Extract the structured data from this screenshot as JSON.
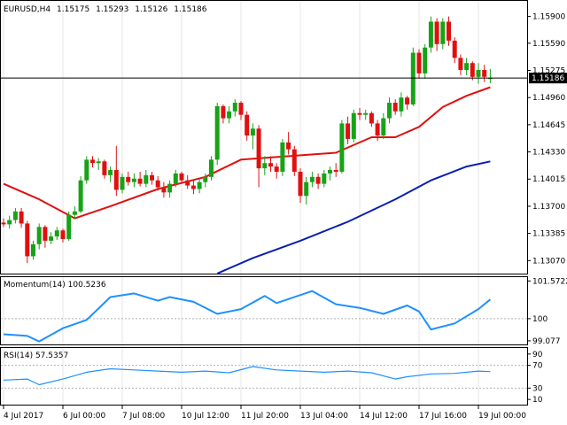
{
  "header": {
    "symbol": "EURUSD,H4",
    "open": "1.15175",
    "high": "1.15293",
    "low": "1.15126",
    "close": "1.15186"
  },
  "colors": {
    "bull": "#17a317",
    "bear": "#e01010",
    "ma_fast": "#e01010",
    "ma_slow": "#0a1fb0",
    "indicator": "#1e90ff",
    "grid": "#e6e6e6",
    "price_tag_bg": "#000000",
    "price_tag_text": "#ffffff"
  },
  "chart_data": [
    {
      "type": "candlestick",
      "panel": "price",
      "title": "EURUSD,H4",
      "ylim": [
        1.1295,
        1.1605
      ],
      "y_ticks": [
        "1.15900",
        "1.15590",
        "1.15275",
        "1.14960",
        "1.14645",
        "1.14330",
        "1.14015",
        "1.13700",
        "1.13385",
        "1.13070"
      ],
      "current_price": "1.15186",
      "x_labels": [
        "4 Jul 2017",
        "6 Jul 00:00",
        "7 Jul 08:00",
        "10 Jul 12:00",
        "11 Jul 20:00",
        "13 Jul 04:00",
        "14 Jul 12:00",
        "17 Jul 16:00",
        "19 Jul 00:00"
      ],
      "x_label_index": [
        0,
        10,
        20,
        30,
        40,
        50,
        60,
        70,
        80
      ],
      "candles": [
        [
          1.1351,
          1.1356,
          1.1346,
          1.1349
        ],
        [
          1.1349,
          1.1359,
          1.1344,
          1.1354
        ],
        [
          1.1354,
          1.1368,
          1.135,
          1.1364
        ],
        [
          1.1364,
          1.1368,
          1.1345,
          1.135
        ],
        [
          1.135,
          1.1353,
          1.1304,
          1.1312
        ],
        [
          1.1312,
          1.133,
          1.1308,
          1.1326
        ],
        [
          1.1326,
          1.135,
          1.132,
          1.1346
        ],
        [
          1.1346,
          1.1348,
          1.1322,
          1.133
        ],
        [
          1.133,
          1.134,
          1.1326,
          1.1335
        ],
        [
          1.1335,
          1.1346,
          1.1331,
          1.1342
        ],
        [
          1.1342,
          1.1344,
          1.1328,
          1.1332
        ],
        [
          1.1332,
          1.1364,
          1.133,
          1.136
        ],
        [
          1.136,
          1.137,
          1.1355,
          1.1364
        ],
        [
          1.1364,
          1.1405,
          1.1362,
          1.14
        ],
        [
          1.14,
          1.1428,
          1.1396,
          1.1424
        ],
        [
          1.1424,
          1.1428,
          1.1415,
          1.142
        ],
        [
          1.142,
          1.1426,
          1.1412,
          1.1422
        ],
        [
          1.1422,
          1.1424,
          1.1402,
          1.1406
        ],
        [
          1.1406,
          1.1416,
          1.1398,
          1.1412
        ],
        [
          1.1412,
          1.144,
          1.1382,
          1.1389
        ],
        [
          1.1389,
          1.1408,
          1.1385,
          1.1404
        ],
        [
          1.1404,
          1.141,
          1.1394,
          1.1398
        ],
        [
          1.1398,
          1.1408,
          1.1392,
          1.1402
        ],
        [
          1.1402,
          1.141,
          1.1393,
          1.1396
        ],
        [
          1.1396,
          1.1412,
          1.1392,
          1.1406
        ],
        [
          1.1406,
          1.141,
          1.1395,
          1.14
        ],
        [
          1.14,
          1.1405,
          1.1388,
          1.1392
        ],
        [
          1.1392,
          1.1398,
          1.138,
          1.1386
        ],
        [
          1.1386,
          1.14,
          1.138,
          1.1396
        ],
        [
          1.1396,
          1.1412,
          1.1392,
          1.1408
        ],
        [
          1.1408,
          1.141,
          1.1396,
          1.14
        ],
        [
          1.14,
          1.1406,
          1.139,
          1.1394
        ],
        [
          1.1394,
          1.14,
          1.1384,
          1.139
        ],
        [
          1.139,
          1.1402,
          1.1385,
          1.1398
        ],
        [
          1.1398,
          1.1408,
          1.1392,
          1.1404
        ],
        [
          1.1404,
          1.1428,
          1.14,
          1.1424
        ],
        [
          1.1424,
          1.149,
          1.1418,
          1.1486
        ],
        [
          1.1486,
          1.1488,
          1.1466,
          1.1472
        ],
        [
          1.1472,
          1.1486,
          1.1466,
          1.148
        ],
        [
          1.148,
          1.1494,
          1.1474,
          1.149
        ],
        [
          1.149,
          1.1492,
          1.147,
          1.1476
        ],
        [
          1.1476,
          1.148,
          1.1446,
          1.1452
        ],
        [
          1.1452,
          1.1466,
          1.1436,
          1.146
        ],
        [
          1.146,
          1.1464,
          1.1392,
          1.1414
        ],
        [
          1.1414,
          1.1428,
          1.1406,
          1.142
        ],
        [
          1.142,
          1.1428,
          1.141,
          1.1416
        ],
        [
          1.1416,
          1.142,
          1.1402,
          1.141
        ],
        [
          1.141,
          1.1448,
          1.1405,
          1.1444
        ],
        [
          1.1444,
          1.1456,
          1.143,
          1.1436
        ],
        [
          1.1436,
          1.144,
          1.1405,
          1.141
        ],
        [
          1.141,
          1.1414,
          1.1374,
          1.1382
        ],
        [
          1.1382,
          1.1404,
          1.1372,
          1.1398
        ],
        [
          1.1398,
          1.141,
          1.1392,
          1.1404
        ],
        [
          1.1404,
          1.1408,
          1.139,
          1.1396
        ],
        [
          1.1396,
          1.1412,
          1.1392,
          1.1408
        ],
        [
          1.1408,
          1.1416,
          1.14,
          1.1412
        ],
        [
          1.1412,
          1.142,
          1.1404,
          1.141
        ],
        [
          1.141,
          1.147,
          1.1408,
          1.1466
        ],
        [
          1.1466,
          1.1474,
          1.1442,
          1.1448
        ],
        [
          1.1448,
          1.1482,
          1.1444,
          1.1478
        ],
        [
          1.1478,
          1.1484,
          1.147,
          1.1476
        ],
        [
          1.1476,
          1.1482,
          1.147,
          1.1478
        ],
        [
          1.1478,
          1.148,
          1.1462,
          1.1466
        ],
        [
          1.1466,
          1.147,
          1.1446,
          1.1452
        ],
        [
          1.1452,
          1.1478,
          1.1448,
          1.1472
        ],
        [
          1.1472,
          1.1496,
          1.1466,
          1.149
        ],
        [
          1.149,
          1.1494,
          1.1476,
          1.148
        ],
        [
          1.148,
          1.1502,
          1.1474,
          1.1496
        ],
        [
          1.1496,
          1.1498,
          1.1482,
          1.1488
        ],
        [
          1.1488,
          1.1554,
          1.1486,
          1.1548
        ],
        [
          1.1548,
          1.1552,
          1.1518,
          1.1524
        ],
        [
          1.1524,
          1.1558,
          1.1518,
          1.1554
        ],
        [
          1.1554,
          1.159,
          1.1548,
          1.1584
        ],
        [
          1.1584,
          1.1588,
          1.155,
          1.1558
        ],
        [
          1.1558,
          1.1588,
          1.1552,
          1.1584
        ],
        [
          1.1584,
          1.159,
          1.1556,
          1.1562
        ],
        [
          1.1562,
          1.1566,
          1.1536,
          1.1542
        ],
        [
          1.1542,
          1.1546,
          1.1522,
          1.1528
        ],
        [
          1.1528,
          1.1542,
          1.1522,
          1.1536
        ],
        [
          1.1536,
          1.1538,
          1.1516,
          1.152
        ],
        [
          1.152,
          1.1536,
          1.1512,
          1.1528
        ],
        [
          1.1528,
          1.1534,
          1.1514,
          1.152
        ],
        [
          1.15175,
          1.15293,
          1.15126,
          1.15186
        ]
      ],
      "ma_fast": [
        [
          0,
          1.1396
        ],
        [
          6,
          1.1378
        ],
        [
          12,
          1.1356
        ],
        [
          18,
          1.137
        ],
        [
          26,
          1.139
        ],
        [
          34,
          1.1404
        ],
        [
          40,
          1.1424
        ],
        [
          48,
          1.1428
        ],
        [
          56,
          1.1432
        ],
        [
          62,
          1.145
        ],
        [
          66,
          1.145
        ],
        [
          70,
          1.1462
        ],
        [
          74,
          1.1485
        ],
        [
          78,
          1.1498
        ],
        [
          82,
          1.1508
        ]
      ],
      "ma_slow": [
        [
          36,
          1.1292
        ],
        [
          42,
          1.131
        ],
        [
          50,
          1.133
        ],
        [
          58,
          1.1352
        ],
        [
          66,
          1.1378
        ],
        [
          72,
          1.14
        ],
        [
          78,
          1.1416
        ],
        [
          82,
          1.1422
        ]
      ]
    },
    {
      "type": "line",
      "panel": "momentum",
      "title": "Momentum(14) 100.5236",
      "ylim": [
        99.0,
        101.62
      ],
      "y_ticks": [
        "101.5722",
        "100",
        "99.077"
      ],
      "values": [
        [
          0,
          99.35
        ],
        [
          4,
          99.28
        ],
        [
          6,
          99.05
        ],
        [
          10,
          99.6
        ],
        [
          14,
          99.95
        ],
        [
          18,
          100.9
        ],
        [
          22,
          101.05
        ],
        [
          26,
          100.75
        ],
        [
          28,
          100.9
        ],
        [
          32,
          100.7
        ],
        [
          36,
          100.2
        ],
        [
          40,
          100.4
        ],
        [
          44,
          100.95
        ],
        [
          46,
          100.65
        ],
        [
          52,
          101.15
        ],
        [
          56,
          100.6
        ],
        [
          60,
          100.45
        ],
        [
          64,
          100.2
        ],
        [
          68,
          100.55
        ],
        [
          70,
          100.3
        ],
        [
          72,
          99.55
        ],
        [
          76,
          99.8
        ],
        [
          80,
          100.4
        ],
        [
          82,
          100.8
        ]
      ]
    },
    {
      "type": "line",
      "panel": "rsi",
      "title": "RSI(14) 57.5357",
      "ylim": [
        4,
        96
      ],
      "y_ticks": [
        "90",
        "70",
        "30",
        "10"
      ],
      "values": [
        [
          0,
          44
        ],
        [
          4,
          46
        ],
        [
          6,
          36
        ],
        [
          10,
          46
        ],
        [
          14,
          58
        ],
        [
          18,
          64
        ],
        [
          22,
          62
        ],
        [
          26,
          60
        ],
        [
          30,
          58
        ],
        [
          34,
          60
        ],
        [
          38,
          57
        ],
        [
          42,
          68
        ],
        [
          46,
          62
        ],
        [
          50,
          60
        ],
        [
          54,
          58
        ],
        [
          58,
          60
        ],
        [
          62,
          57
        ],
        [
          66,
          46
        ],
        [
          68,
          50
        ],
        [
          72,
          55
        ],
        [
          76,
          56
        ],
        [
          80,
          60
        ],
        [
          82,
          59
        ]
      ]
    }
  ]
}
